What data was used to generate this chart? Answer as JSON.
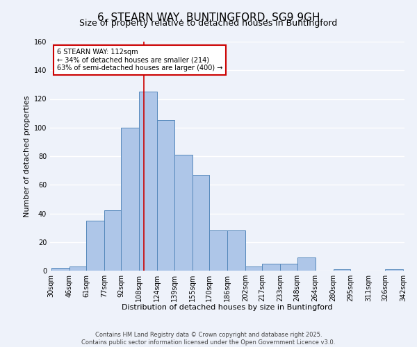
{
  "title": "6, STEARN WAY, BUNTINGFORD, SG9 9GH",
  "subtitle": "Size of property relative to detached houses in Buntingford",
  "xlabel": "Distribution of detached houses by size in Buntingford",
  "ylabel": "Number of detached properties",
  "footer_line1": "Contains HM Land Registry data © Crown copyright and database right 2025.",
  "footer_line2": "Contains public sector information licensed under the Open Government Licence v3.0.",
  "bin_edges": [
    30,
    46,
    61,
    77,
    92,
    108,
    124,
    139,
    155,
    170,
    186,
    202,
    217,
    233,
    248,
    264,
    280,
    295,
    311,
    326,
    342
  ],
  "bin_labels": [
    "30sqm",
    "46sqm",
    "61sqm",
    "77sqm",
    "92sqm",
    "108sqm",
    "124sqm",
    "139sqm",
    "155sqm",
    "170sqm",
    "186sqm",
    "202sqm",
    "217sqm",
    "233sqm",
    "248sqm",
    "264sqm",
    "280sqm",
    "295sqm",
    "311sqm",
    "326sqm",
    "342sqm"
  ],
  "bar_heights": [
    2,
    3,
    35,
    42,
    100,
    125,
    105,
    81,
    67,
    28,
    28,
    3,
    5,
    5,
    9,
    0,
    1,
    0,
    0,
    1
  ],
  "bar_color": "#aec6e8",
  "bar_edge_color": "#5588bb",
  "bar_edge_width": 0.7,
  "ylim": [
    0,
    160
  ],
  "yticks": [
    0,
    20,
    40,
    60,
    80,
    100,
    120,
    140,
    160
  ],
  "vline_x": 112,
  "vline_color": "#cc0000",
  "annotation_title": "6 STEARN WAY: 112sqm",
  "annotation_line1": "← 34% of detached houses are smaller (214)",
  "annotation_line2": "63% of semi-detached houses are larger (400) →",
  "bg_color": "#eef2fa",
  "grid_color": "#ffffff",
  "title_fontsize": 11,
  "subtitle_fontsize": 9,
  "axis_label_fontsize": 8,
  "tick_fontsize": 7,
  "footer_fontsize": 6
}
